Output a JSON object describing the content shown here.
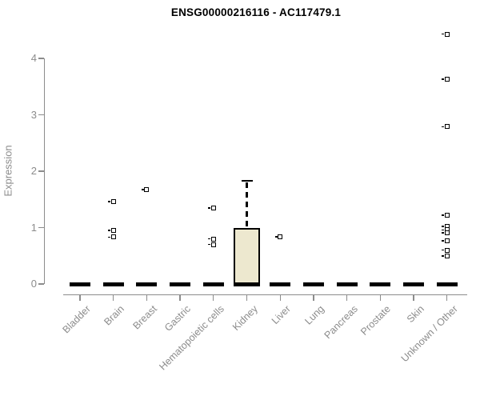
{
  "chart_data": {
    "type": "boxplot",
    "title": "ENSG00000216116 - AC117479.1",
    "ylabel": "Expression",
    "xlabel": "",
    "ylim": [
      0,
      4
    ],
    "yticks": [
      "0",
      "1",
      "2",
      "3",
      "4"
    ],
    "grid": false,
    "legend": false,
    "categories": [
      "Bladder",
      "Brain",
      "Breast",
      "Gastric",
      "Hematopoietic cells",
      "Kidney",
      "Liver",
      "Lung",
      "Pancreas",
      "Prostate",
      "Skin",
      "Unknown / Other"
    ],
    "boxes": [
      {
        "category": "Bladder",
        "q1": 0,
        "median": 0,
        "q3": 0,
        "whisker_low": 0,
        "whisker_high": 0,
        "outliers": []
      },
      {
        "category": "Brain",
        "q1": 0,
        "median": 0,
        "q3": 0,
        "whisker_low": 0,
        "whisker_high": 0,
        "outliers": [
          1.46,
          0.95,
          0.83
        ]
      },
      {
        "category": "Breast",
        "q1": 0,
        "median": 0,
        "q3": 0,
        "whisker_low": 0,
        "whisker_high": 0,
        "outliers": [
          1.67
        ]
      },
      {
        "category": "Gastric",
        "q1": 0,
        "median": 0,
        "q3": 0,
        "whisker_low": 0,
        "whisker_high": 0,
        "outliers": []
      },
      {
        "category": "Hematopoietic cells",
        "q1": 0,
        "median": 0,
        "q3": 0,
        "whisker_low": 0,
        "whisker_high": 0,
        "outliers": [
          1.35,
          0.8,
          0.7
        ]
      },
      {
        "category": "Kidney",
        "q1": 0,
        "median": 0,
        "q3": 1.0,
        "whisker_low": 0,
        "whisker_high": 1.83,
        "outliers": []
      },
      {
        "category": "Liver",
        "q1": 0,
        "median": 0,
        "q3": 0,
        "whisker_low": 0,
        "whisker_high": 0,
        "outliers": [
          0.84
        ]
      },
      {
        "category": "Lung",
        "q1": 0,
        "median": 0,
        "q3": 0,
        "whisker_low": 0,
        "whisker_high": 0,
        "outliers": []
      },
      {
        "category": "Pancreas",
        "q1": 0,
        "median": 0,
        "q3": 0,
        "whisker_low": 0,
        "whisker_high": 0,
        "outliers": []
      },
      {
        "category": "Prostate",
        "q1": 0,
        "median": 0,
        "q3": 0,
        "whisker_low": 0,
        "whisker_high": 0,
        "outliers": []
      },
      {
        "category": "Skin",
        "q1": 0,
        "median": 0,
        "q3": 0,
        "whisker_low": 0,
        "whisker_high": 0,
        "outliers": []
      },
      {
        "category": "Unknown / Other",
        "q1": 0,
        "median": 0,
        "q3": 0,
        "whisker_low": 0,
        "whisker_high": 0,
        "outliers": [
          4.43,
          3.63,
          2.79,
          1.22,
          1.02,
          0.96,
          0.91,
          0.77,
          0.6,
          0.5
        ]
      }
    ],
    "colors": {
      "box_fill": "#EDE8CF",
      "box_border": "#000000",
      "median": "#000000",
      "marker": "#000000",
      "axis_line": "#8c8c8c",
      "tick_label": "#8c8c8c",
      "title": "#000000",
      "background": "#ffffff"
    }
  }
}
